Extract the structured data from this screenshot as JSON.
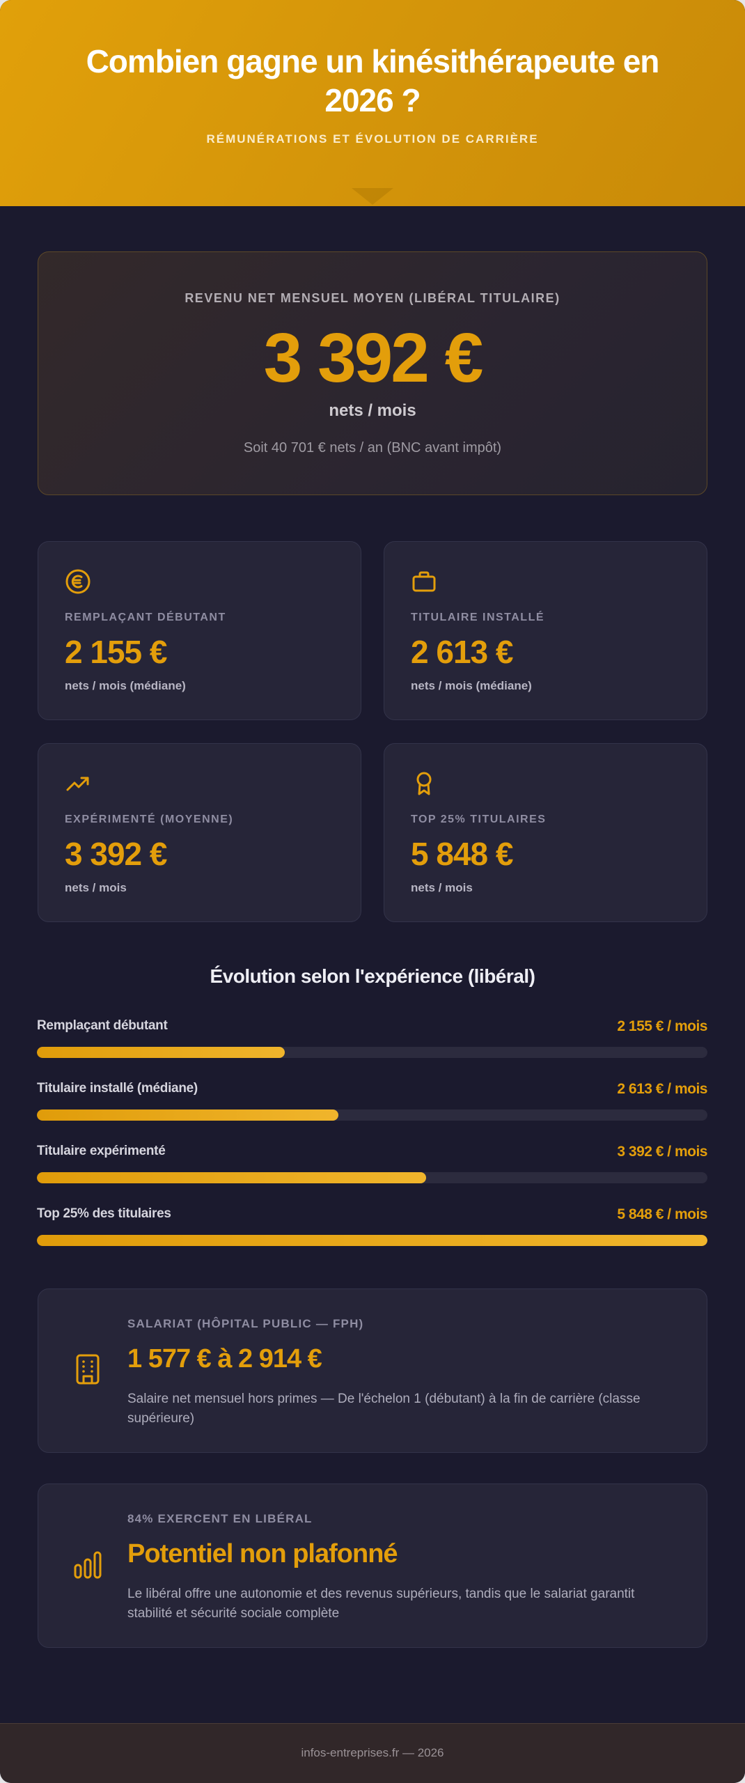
{
  "header": {
    "title": "Combien gagne un kinésithérapeute en 2026 ?",
    "subtitle": "RÉMUNÉRATIONS ET ÉVOLUTION DE CARRIÈRE"
  },
  "hero": {
    "label": "REVENU NET MENSUEL MOYEN (LIBÉRAL TITULAIRE)",
    "value": "3 392 €",
    "unit": "nets / mois",
    "note": "Soit 40 701 € nets / an (BNC avant impôt)"
  },
  "stats": [
    {
      "icon": "euro-coin-icon",
      "label": "REMPLAÇANT DÉBUTANT",
      "value": "2 155 €",
      "unit": "nets / mois (médiane)"
    },
    {
      "icon": "briefcase-icon",
      "label": "TITULAIRE INSTALLÉ",
      "value": "2 613 €",
      "unit": "nets / mois (médiane)"
    },
    {
      "icon": "trending-up-icon",
      "label": "EXPÉRIMENTÉ (MOYENNE)",
      "value": "3 392 €",
      "unit": "nets / mois"
    },
    {
      "icon": "award-ribbon-icon",
      "label": "TOP 25% TITULAIRES",
      "value": "5 848 €",
      "unit": "nets / mois"
    }
  ],
  "evolution": {
    "title": "Évolution selon l'expérience (libéral)",
    "rows": [
      {
        "label": "Remplaçant débutant",
        "value": "2 155 € / mois",
        "amount": 2155,
        "percent": 37
      },
      {
        "label": "Titulaire installé (médiane)",
        "value": "2 613 € / mois",
        "amount": 2613,
        "percent": 45
      },
      {
        "label": "Titulaire expérimenté",
        "value": "3 392 € / mois",
        "amount": 3392,
        "percent": 58
      },
      {
        "label": "Top 25% des titulaires",
        "value": "5 848 € / mois",
        "amount": 5848,
        "percent": 100
      }
    ]
  },
  "info_cards": [
    {
      "icon": "building-icon",
      "label": "SALARIAT (HÔPITAL PUBLIC — FPH)",
      "value": "1 577 € à 2 914 €",
      "description": "Salaire net mensuel hors primes — De l'échelon 1 (débutant) à la fin de carrière (classe supérieure)"
    },
    {
      "icon": "bar-chart-icon",
      "label": "84% EXERCENT EN LIBÉRAL",
      "value": "Potentiel non plafonné",
      "description": "Le libéral offre une autonomie et des revenus supérieurs, tandis que le salariat garantit stabilité et sécurité sociale complète"
    }
  ],
  "footer": {
    "text": "infos-entreprises.fr — 2026"
  },
  "colors": {
    "accent": "#e39e0b",
    "header_gradient_start": "#e1a00a",
    "header_gradient_end": "#c98a08",
    "page_background": "#1b1a2e",
    "card_background": "#262538",
    "footer_background": "#312729"
  }
}
